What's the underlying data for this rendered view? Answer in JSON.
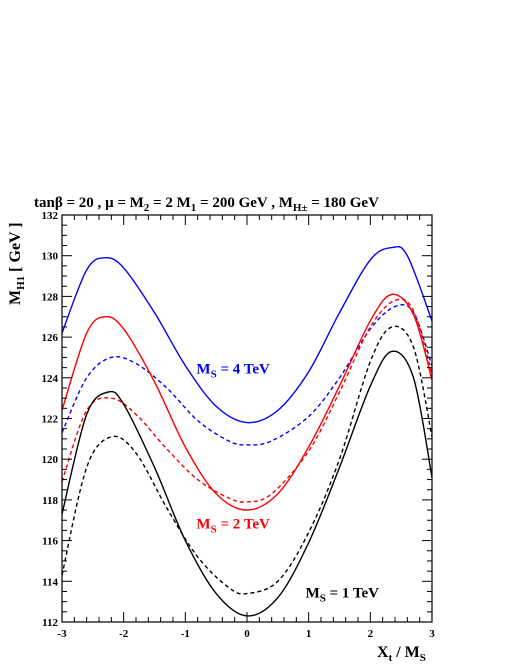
{
  "chart_data": {
    "type": "line",
    "title_parts": {
      "tan": "tan",
      "beta": "β",
      "eq20": " = 20 ,  ",
      "mu": "μ",
      "mid": " = M",
      "sub2": "2",
      "mid2": " = 2 M",
      "sub1": "1",
      "mid3": " = 200 GeV , M",
      "subH": "H±",
      "end": " = 180 GeV"
    },
    "xlabel": {
      "main": "X",
      "sub1": "t",
      "mid": " / M",
      "sub2": "S"
    },
    "ylabel": {
      "main": "M",
      "sub": "H1",
      "rest": " [ GeV ]"
    },
    "xlim": [
      -3,
      3
    ],
    "ylim": [
      112,
      132
    ],
    "x_ticks": [
      "-3",
      "-2",
      "-1",
      "0",
      "1",
      "2",
      "3"
    ],
    "y_ticks": [
      "112",
      "114",
      "116",
      "118",
      "120",
      "122",
      "124",
      "126",
      "128",
      "130",
      "132"
    ],
    "annotations": [
      {
        "main": "M",
        "sub": "S",
        "rest": " = 4 TeV",
        "color": "#0000ff",
        "x": -0.82,
        "y": 124.2
      },
      {
        "main": "M",
        "sub": "S",
        "rest": " = 2 TeV",
        "color": "#ff0000",
        "x": -0.82,
        "y": 116.6
      },
      {
        "main": "M",
        "sub": "S",
        "rest": " = 1 TeV",
        "color": "#000000",
        "x": 0.95,
        "y": 113.2
      }
    ],
    "series": [
      {
        "color": "#0000ff",
        "style": "solid",
        "points": [
          [
            -3,
            126.2
          ],
          [
            -2.6,
            129.3
          ],
          [
            -2.3,
            129.9
          ],
          [
            -2,
            129.4
          ],
          [
            -1.5,
            127.2
          ],
          [
            -1,
            124.6
          ],
          [
            -0.5,
            122.6
          ],
          [
            0,
            121.8
          ],
          [
            0.5,
            122.4
          ],
          [
            1,
            124.3
          ],
          [
            1.5,
            127.2
          ],
          [
            2,
            129.8
          ],
          [
            2.35,
            130.4
          ],
          [
            2.6,
            130.0
          ],
          [
            3,
            126.8
          ]
        ]
      },
      {
        "color": "#0000ff",
        "style": "dashed",
        "points": [
          [
            -3,
            121.3
          ],
          [
            -2.6,
            124.0
          ],
          [
            -2.2,
            125.0
          ],
          [
            -1.8,
            124.7
          ],
          [
            -1.3,
            123.5
          ],
          [
            -0.8,
            121.9
          ],
          [
            -0.3,
            120.9
          ],
          [
            0,
            120.7
          ],
          [
            0.4,
            120.9
          ],
          [
            1,
            122.1
          ],
          [
            1.5,
            124.0
          ],
          [
            2,
            126.4
          ],
          [
            2.4,
            127.5
          ],
          [
            2.7,
            127.2
          ],
          [
            3,
            124.6
          ]
        ]
      },
      {
        "color": "#ff0000",
        "style": "solid",
        "points": [
          [
            -3,
            122.4
          ],
          [
            -2.6,
            126.2
          ],
          [
            -2.3,
            127.0
          ],
          [
            -2,
            126.4
          ],
          [
            -1.5,
            123.8
          ],
          [
            -1,
            120.6
          ],
          [
            -0.5,
            118.3
          ],
          [
            0,
            117.5
          ],
          [
            0.5,
            118.3
          ],
          [
            1,
            120.6
          ],
          [
            1.5,
            123.6
          ],
          [
            2,
            126.8
          ],
          [
            2.35,
            128.1
          ],
          [
            2.7,
            127.1
          ],
          [
            3,
            123.9
          ]
        ]
      },
      {
        "color": "#ff0000",
        "style": "dashed",
        "points": [
          [
            -3,
            118.9
          ],
          [
            -2.6,
            122.4
          ],
          [
            -2.2,
            123.0
          ],
          [
            -1.8,
            122.2
          ],
          [
            -1.3,
            120.5
          ],
          [
            -0.8,
            119.0
          ],
          [
            -0.3,
            118.1
          ],
          [
            0,
            117.9
          ],
          [
            0.4,
            118.3
          ],
          [
            1,
            120.4
          ],
          [
            1.5,
            123.3
          ],
          [
            2,
            126.5
          ],
          [
            2.4,
            127.8
          ],
          [
            2.7,
            127.3
          ],
          [
            3,
            124.2
          ]
        ]
      },
      {
        "color": "#000000",
        "style": "solid",
        "points": [
          [
            -3,
            117.3
          ],
          [
            -2.6,
            122.2
          ],
          [
            -2.25,
            123.3
          ],
          [
            -2,
            122.7
          ],
          [
            -1.5,
            119.6
          ],
          [
            -1,
            116.0
          ],
          [
            -0.5,
            113.4
          ],
          [
            0,
            112.3
          ],
          [
            0.5,
            113.2
          ],
          [
            1,
            115.9
          ],
          [
            1.5,
            119.6
          ],
          [
            2,
            123.6
          ],
          [
            2.35,
            125.3
          ],
          [
            2.7,
            124.0
          ],
          [
            3,
            119.1
          ]
        ]
      },
      {
        "color": "#000000",
        "style": "dashed",
        "points": [
          [
            -3,
            114.3
          ],
          [
            -2.6,
            119.6
          ],
          [
            -2.2,
            121.1
          ],
          [
            -1.8,
            120.3
          ],
          [
            -1.3,
            117.6
          ],
          [
            -0.8,
            115.2
          ],
          [
            -0.3,
            113.7
          ],
          [
            0,
            113.4
          ],
          [
            0.5,
            114.0
          ],
          [
            1,
            116.4
          ],
          [
            1.5,
            120.0
          ],
          [
            2,
            124.8
          ],
          [
            2.35,
            126.5
          ],
          [
            2.7,
            125.5
          ],
          [
            3,
            121.1
          ]
        ]
      }
    ]
  }
}
